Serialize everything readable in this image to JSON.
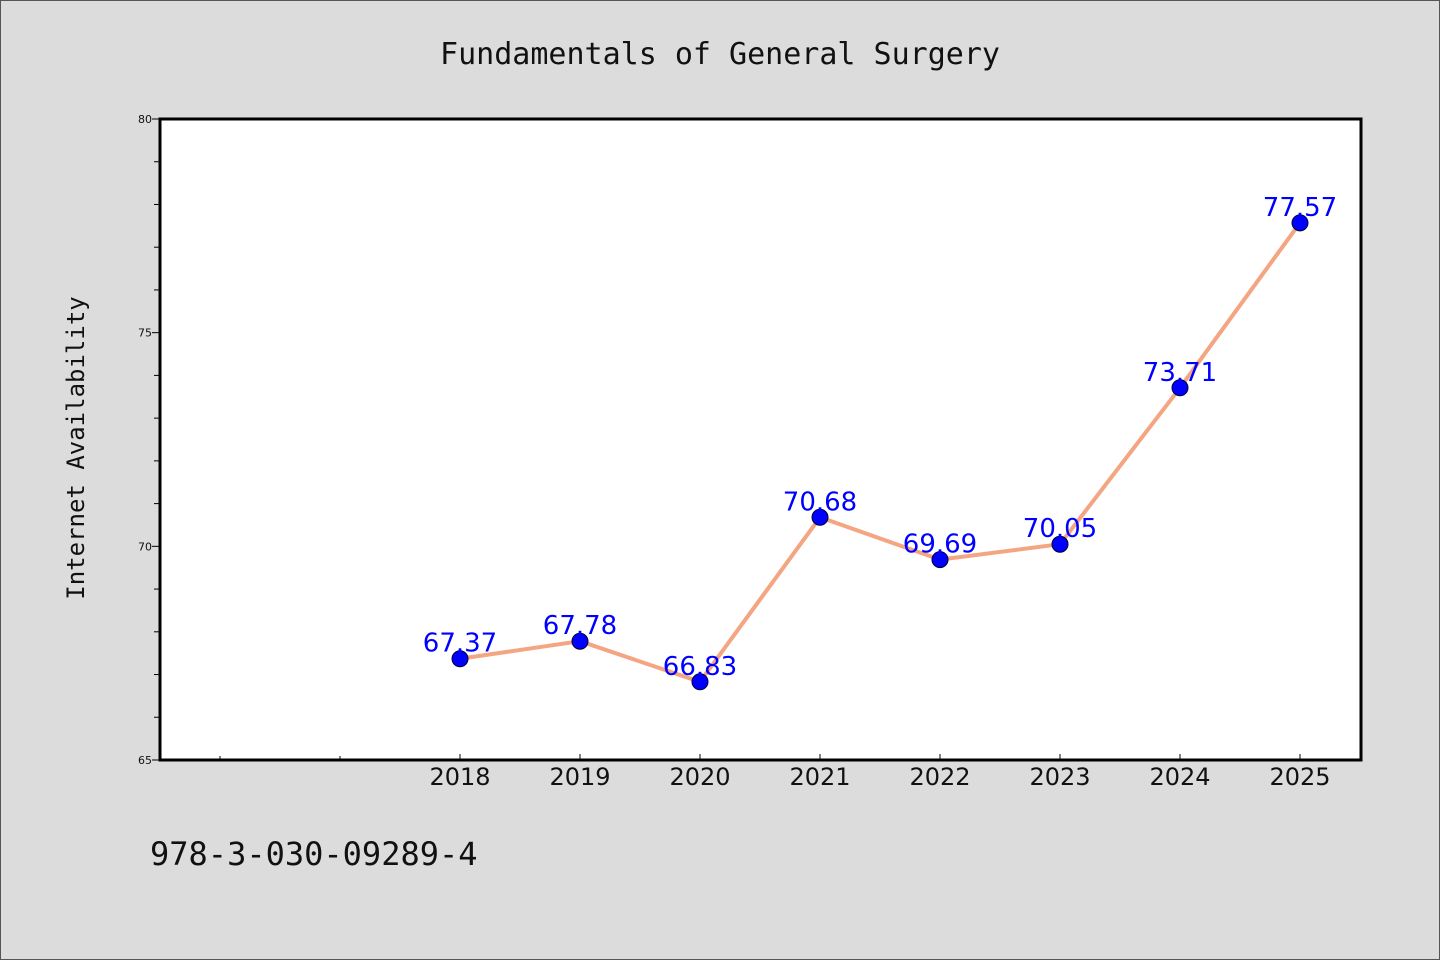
{
  "chart_data": {
    "type": "line",
    "title": "Fundamentals of General Surgery",
    "xlabel": "",
    "ylabel": "Internet Availability",
    "categories": [
      "2018",
      "2019",
      "2020",
      "2021",
      "2022",
      "2023",
      "2024",
      "2025"
    ],
    "series": [
      {
        "values": [
          67.37,
          67.78,
          66.83,
          70.68,
          69.69,
          70.05,
          73.71,
          77.57
        ]
      }
    ],
    "data_labels": [
      "67.37",
      "67.78",
      "66.83",
      "70.68",
      "69.69",
      "70.05",
      "73.71",
      "77.57"
    ],
    "ylim": [
      65,
      80
    ],
    "yticks": [
      "65",
      "70",
      "75",
      "80"
    ],
    "grid": false,
    "legend": "none",
    "line_color": "#f4a582",
    "marker_color": "#0000ff",
    "label_color": "#0000ff"
  },
  "footer": {
    "isbn": "978-3-030-09289-4"
  }
}
